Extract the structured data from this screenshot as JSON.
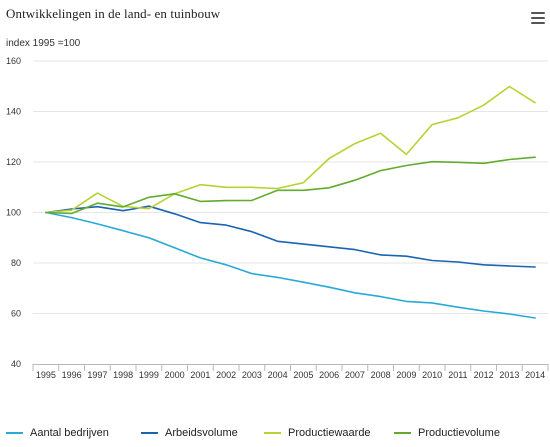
{
  "chart_data": {
    "type": "line",
    "title": "Ontwikkelingen in de land- en tuinbouw",
    "subtitle": "index 1995 =100",
    "ylim": [
      40,
      160
    ],
    "yticks": [
      40,
      60,
      80,
      100,
      120,
      140,
      160
    ],
    "grid": "horizontal",
    "legend": "bottom",
    "categories": [
      "1995",
      "1996",
      "1997",
      "1998",
      "1999",
      "2000",
      "2001",
      "2002",
      "2003",
      "2004",
      "2005",
      "2006",
      "2007",
      "2008",
      "2009",
      "2010",
      "2011",
      "2012",
      "2013",
      "2014"
    ],
    "series": [
      {
        "name": "Aantal bedrijven",
        "color": "#29a9d8",
        "values": [
          100,
          98,
          95.5,
          92.8,
          90,
          86,
          82,
          79.3,
          75.8,
          74.3,
          72.4,
          70.4,
          68.2,
          66.7,
          64.8,
          64.2,
          62.5,
          61,
          59.8,
          58.2
        ]
      },
      {
        "name": "Arbeidsvolume",
        "color": "#1a64b0",
        "values": [
          100,
          101.4,
          102.3,
          100.7,
          102.5,
          99.5,
          96,
          95,
          92.4,
          88.6,
          87.5,
          86.4,
          85.3,
          83.2,
          82.7,
          81,
          80.4,
          79.3,
          78.8,
          78.4
        ]
      },
      {
        "name": "Productiewaarde",
        "color": "#b5d334",
        "values": [
          100,
          100.9,
          107.7,
          102.4,
          101.5,
          107.4,
          111,
          110,
          110,
          109.5,
          111.8,
          121.4,
          127.3,
          131.4,
          123,
          134.8,
          137.5,
          142.5,
          149.9,
          143.5
        ]
      },
      {
        "name": "Productievolume",
        "color": "#62ab2f",
        "values": [
          100,
          99.6,
          103.7,
          102.2,
          106,
          107.4,
          104.4,
          104.7,
          104.8,
          108.8,
          108.8,
          109.8,
          112.8,
          116.6,
          118.6,
          120.1,
          119.9,
          119.5,
          121,
          121.9
        ]
      }
    ]
  },
  "icons": {
    "menu": "hamburger-menu-icon"
  }
}
